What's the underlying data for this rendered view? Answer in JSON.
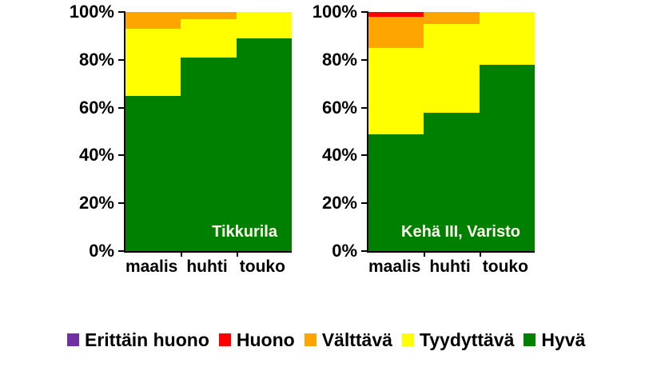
{
  "chart_data": [
    {
      "type": "bar",
      "subtype": "stacked-100-percent",
      "title": "Tikkurila",
      "title_color": "#FFFFF0",
      "categories": [
        "maalis",
        "huhti",
        "touko"
      ],
      "series": [
        {
          "name": "Hyvä",
          "color": "#008000",
          "values": [
            65,
            81,
            89
          ]
        },
        {
          "name": "Tyydyttävä",
          "color": "#FFFF00",
          "values": [
            28,
            16,
            11
          ]
        },
        {
          "name": "Välttävä",
          "color": "#FFA500",
          "values": [
            7,
            3,
            0
          ]
        },
        {
          "name": "Huono",
          "color": "#FF0000",
          "values": [
            0,
            0,
            0
          ]
        },
        {
          "name": "Erittäin huono",
          "color": "#7030A0",
          "values": [
            0,
            0,
            0
          ]
        }
      ],
      "xlabel": "",
      "ylabel": "",
      "ylim": [
        0,
        100
      ],
      "ytick_values": [
        0,
        20,
        40,
        60,
        80,
        100
      ],
      "ytick_labels": [
        "0%",
        "20%",
        "40%",
        "60%",
        "80%",
        "100%"
      ],
      "grid": false
    },
    {
      "type": "bar",
      "subtype": "stacked-100-percent",
      "title": "Kehä III, Varisto",
      "title_color": "#FFFFF0",
      "categories": [
        "maalis",
        "huhti",
        "touko"
      ],
      "series": [
        {
          "name": "Hyvä",
          "color": "#008000",
          "values": [
            49,
            58,
            78
          ]
        },
        {
          "name": "Tyydyttävä",
          "color": "#FFFF00",
          "values": [
            36,
            37,
            22
          ]
        },
        {
          "name": "Välttävä",
          "color": "#FFA500",
          "values": [
            13,
            5,
            0
          ]
        },
        {
          "name": "Huono",
          "color": "#FF0000",
          "values": [
            2,
            0,
            0
          ]
        },
        {
          "name": "Erittäin huono",
          "color": "#7030A0",
          "values": [
            0,
            0,
            0
          ]
        }
      ],
      "xlabel": "",
      "ylabel": "",
      "ylim": [
        0,
        100
      ],
      "ytick_values": [
        0,
        20,
        40,
        60,
        80,
        100
      ],
      "ytick_labels": [
        "0%",
        "20%",
        "40%",
        "60%",
        "80%",
        "100%"
      ],
      "grid": false
    }
  ],
  "legend": {
    "position": "bottom",
    "items": [
      {
        "label": "Erittäin huono",
        "color": "#7030A0"
      },
      {
        "label": "Huono",
        "color": "#FF0000"
      },
      {
        "label": "Välttävä",
        "color": "#FFA500"
      },
      {
        "label": "Tyydyttävä",
        "color": "#FFFF00"
      },
      {
        "label": "Hyvä",
        "color": "#008000"
      }
    ]
  }
}
